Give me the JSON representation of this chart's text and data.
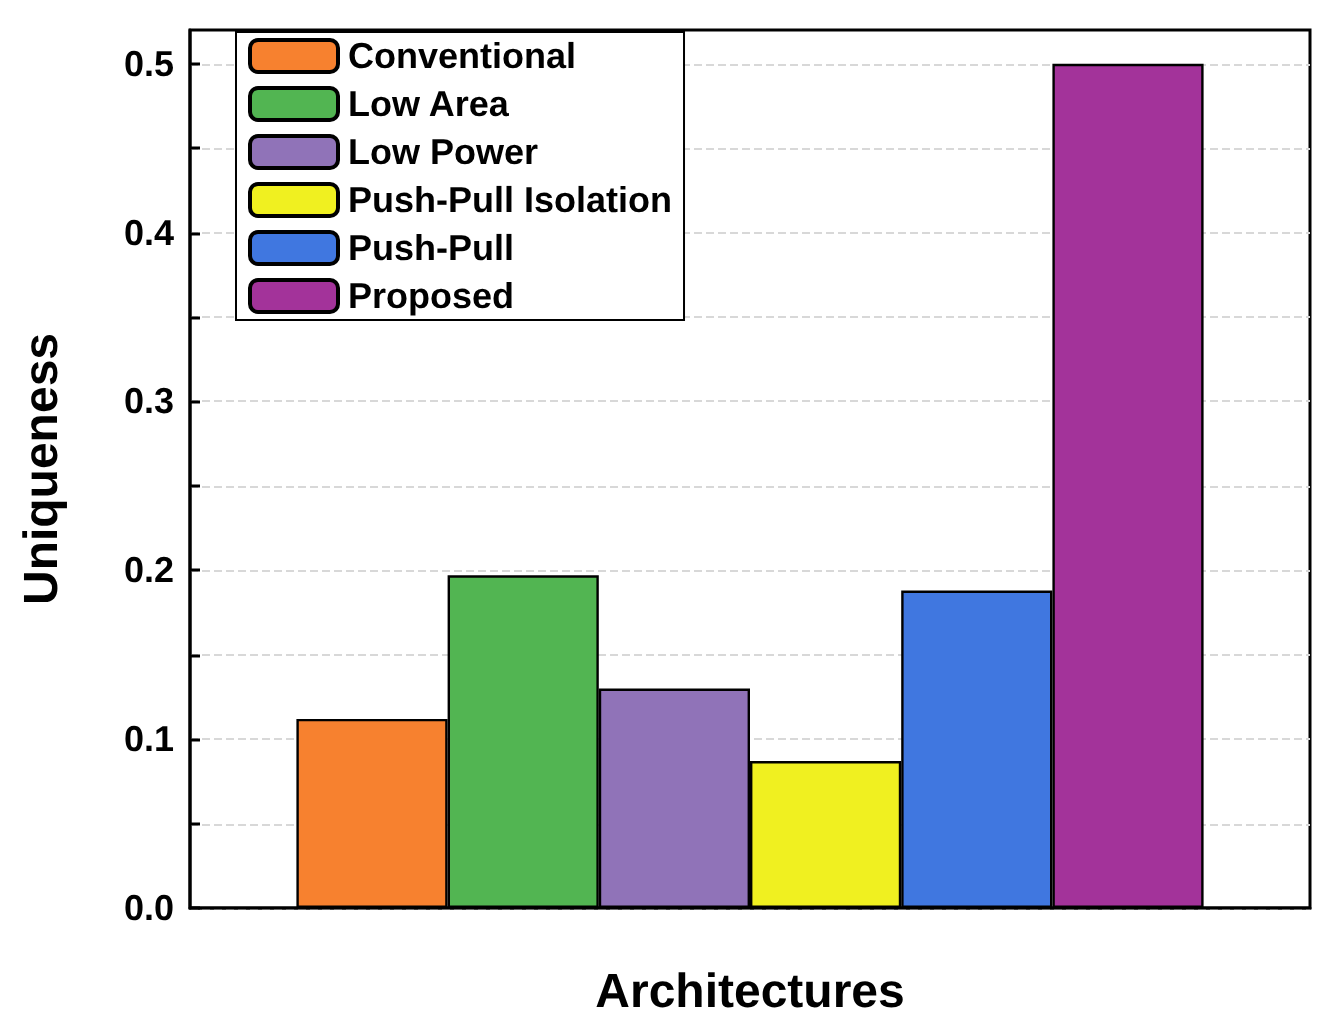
{
  "chart_data": {
    "type": "bar",
    "xlabel": "Architectures",
    "ylabel": "Uniqueness",
    "categories": [
      null
    ],
    "series": [
      {
        "name": "Conventional",
        "color": "#f7812f",
        "values": [
          0.112
        ]
      },
      {
        "name": "Low Area",
        "color": "#52b552",
        "values": [
          0.197
        ]
      },
      {
        "name": "Low Power",
        "color": "#9073b8",
        "values": [
          0.13
        ]
      },
      {
        "name": "Push-Pull Isolation",
        "color": "#f0f020",
        "values": [
          0.087
        ]
      },
      {
        "name": "Push-Pull",
        "color": "#4077e0",
        "values": [
          0.188
        ]
      },
      {
        "name": "Proposed",
        "color": "#a3339a",
        "values": [
          0.5
        ]
      }
    ],
    "ylim": [
      0,
      0.52
    ],
    "yticks": [
      {
        "value": 0,
        "label": "0.0"
      },
      {
        "value": 0.05,
        "label": null
      },
      {
        "value": 0.1,
        "label": "0.1"
      },
      {
        "value": 0.15,
        "label": null
      },
      {
        "value": 0.2,
        "label": "0.2"
      },
      {
        "value": 0.25,
        "label": null
      },
      {
        "value": 0.3,
        "label": "0.3"
      },
      {
        "value": 0.35,
        "label": null
      },
      {
        "value": 0.4,
        "label": "0.4"
      },
      {
        "value": 0.45,
        "label": null
      },
      {
        "value": 0.5,
        "label": "0.5"
      }
    ],
    "grid": true,
    "legend": "top left"
  }
}
